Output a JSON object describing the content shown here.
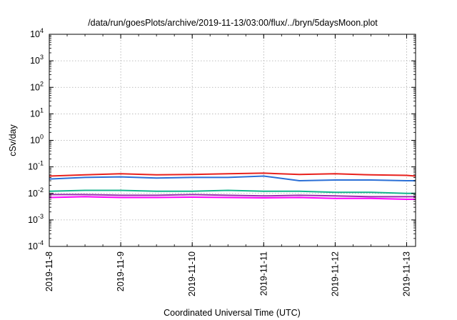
{
  "chart_data": {
    "type": "line",
    "title": "/data/run/goesPlots/archive/2019-11-13/03:00/flux/../bryn/5daysMoon.plot",
    "xlabel": "Coordinated Universal Time (UTC)",
    "ylabel": "cSv/day",
    "yscale": "log",
    "ylim": [
      0.0001,
      10000
    ],
    "xlim": [
      "2019-11-08T00:00",
      "2019-11-13T03:00"
    ],
    "grid": true,
    "legend": "none",
    "x_ticks": [
      "2019-11-8",
      "2019-11-9",
      "2019-11-10",
      "2019-11-11",
      "2019-11-12",
      "2019-11-13"
    ],
    "y_ticks": [
      {
        "base": "10",
        "exp": "4"
      },
      {
        "base": "10",
        "exp": "3"
      },
      {
        "base": "10",
        "exp": "2"
      },
      {
        "base": "10",
        "exp": "1"
      },
      {
        "base": "10",
        "exp": "0"
      },
      {
        "base": "10",
        "exp": "-1"
      },
      {
        "base": "10",
        "exp": "-2"
      },
      {
        "base": "10",
        "exp": "-3"
      },
      {
        "base": "10",
        "exp": "-4"
      }
    ],
    "series": [
      {
        "color": "#e8211d",
        "x": [
          "2019-11-08T00:00",
          "2019-11-08T12:00",
          "2019-11-09T00:00",
          "2019-11-09T12:00",
          "2019-11-10T00:00",
          "2019-11-10T12:00",
          "2019-11-11T00:00",
          "2019-11-11T12:00",
          "2019-11-12T00:00",
          "2019-11-12T12:00",
          "2019-11-13T00:00",
          "2019-11-13T03:00"
        ],
        "y": [
          0.045,
          0.05,
          0.055,
          0.05,
          0.052,
          0.055,
          0.058,
          0.052,
          0.055,
          0.05,
          0.048,
          0.045
        ]
      },
      {
        "color": "#2a6fd6",
        "x": [
          "2019-11-08T00:00",
          "2019-11-08T12:00",
          "2019-11-09T00:00",
          "2019-11-09T12:00",
          "2019-11-10T00:00",
          "2019-11-10T12:00",
          "2019-11-11T00:00",
          "2019-11-11T12:00",
          "2019-11-12T00:00",
          "2019-11-12T12:00",
          "2019-11-13T00:00",
          "2019-11-13T03:00"
        ],
        "y": [
          0.035,
          0.04,
          0.042,
          0.038,
          0.04,
          0.04,
          0.045,
          0.03,
          0.032,
          0.032,
          0.03,
          0.03
        ]
      },
      {
        "color": "#14b58d",
        "x": [
          "2019-11-08T00:00",
          "2019-11-08T12:00",
          "2019-11-09T00:00",
          "2019-11-09T12:00",
          "2019-11-10T00:00",
          "2019-11-10T12:00",
          "2019-11-11T00:00",
          "2019-11-11T12:00",
          "2019-11-12T00:00",
          "2019-11-12T12:00",
          "2019-11-13T00:00",
          "2019-11-13T03:00"
        ],
        "y": [
          0.012,
          0.013,
          0.013,
          0.012,
          0.012,
          0.013,
          0.012,
          0.012,
          0.011,
          0.011,
          0.01,
          0.01
        ]
      },
      {
        "color": "#9b2fae",
        "x": [
          "2019-11-08T00:00",
          "2019-11-08T12:00",
          "2019-11-09T00:00",
          "2019-11-09T12:00",
          "2019-11-10T00:00",
          "2019-11-10T12:00",
          "2019-11-11T00:00",
          "2019-11-11T12:00",
          "2019-11-12T00:00",
          "2019-11-12T12:00",
          "2019-11-13T00:00",
          "2019-11-13T03:00"
        ],
        "y": [
          0.009,
          0.009,
          0.0085,
          0.0085,
          0.009,
          0.0085,
          0.008,
          0.0085,
          0.008,
          0.0075,
          0.0075,
          0.0075
        ]
      },
      {
        "color": "#ff00ff",
        "x": [
          "2019-11-08T00:00",
          "2019-11-08T12:00",
          "2019-11-09T00:00",
          "2019-11-09T12:00",
          "2019-11-10T00:00",
          "2019-11-10T12:00",
          "2019-11-11T00:00",
          "2019-11-11T12:00",
          "2019-11-12T00:00",
          "2019-11-12T12:00",
          "2019-11-13T00:00",
          "2019-11-13T03:00"
        ],
        "y": [
          0.007,
          0.0075,
          0.007,
          0.007,
          0.0072,
          0.007,
          0.0068,
          0.007,
          0.0065,
          0.0065,
          0.006,
          0.006
        ]
      }
    ]
  }
}
